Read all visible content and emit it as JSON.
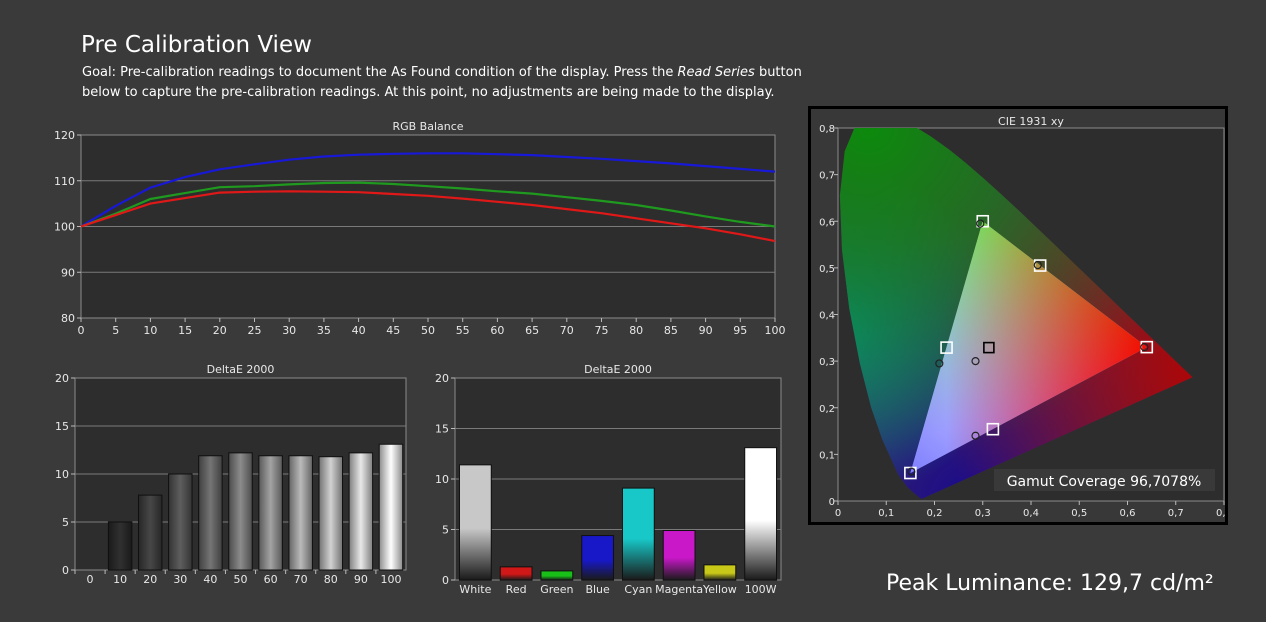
{
  "header": {
    "title": "Pre Calibration View",
    "goal_prefix": "Goal: Pre-calibration readings to document the As Found condition of the display. Press the ",
    "goal_button": "Read Series",
    "goal_suffix": " button below to capture the pre-calibration readings. At this point, no adjustments are being made to the display."
  },
  "peak_luminance": "Peak Luminance: 129,7 cd/m²",
  "chart_data": [
    {
      "type": "line",
      "title": "RGB Balance",
      "x": [
        0,
        5,
        10,
        15,
        20,
        25,
        30,
        35,
        40,
        45,
        50,
        55,
        60,
        65,
        70,
        75,
        80,
        85,
        90,
        95,
        100
      ],
      "xticks": [
        "0",
        "5",
        "10",
        "15",
        "20",
        "25",
        "30",
        "35",
        "40",
        "45",
        "50",
        "55",
        "60",
        "65",
        "70",
        "75",
        "80",
        "85",
        "90",
        "95",
        "100"
      ],
      "yticks": [
        "80",
        "90",
        "100",
        "110",
        "120"
      ],
      "xlim": [
        0,
        100
      ],
      "ylim": [
        80,
        120
      ],
      "grid": true,
      "series": [
        {
          "color": "#1818d8",
          "values": [
            100,
            104.5,
            108.5,
            110.8,
            112.5,
            113.6,
            114.6,
            115.3,
            115.7,
            115.9,
            116.0,
            116.0,
            115.8,
            115.6,
            115.2,
            114.8,
            114.3,
            113.8,
            113.2,
            112.6,
            112.0
          ]
        },
        {
          "color": "#1f9a1f",
          "values": [
            100,
            102.8,
            106.0,
            107.3,
            108.6,
            108.8,
            109.2,
            109.5,
            109.6,
            109.3,
            108.8,
            108.3,
            107.7,
            107.2,
            106.4,
            105.6,
            104.7,
            103.5,
            102.2,
            101.0,
            100.0
          ]
        },
        {
          "color": "#e01818",
          "values": [
            100,
            102.5,
            105.0,
            106.2,
            107.4,
            107.6,
            107.7,
            107.6,
            107.5,
            107.1,
            106.7,
            106.1,
            105.4,
            104.7,
            103.8,
            102.9,
            101.8,
            100.7,
            99.6,
            98.3,
            96.8
          ]
        }
      ]
    },
    {
      "type": "bar",
      "title": "DeltaE 2000",
      "categories": [
        "0",
        "10",
        "20",
        "30",
        "40",
        "50",
        "60",
        "70",
        "80",
        "90",
        "100"
      ],
      "values": [
        0,
        5.0,
        7.8,
        10.0,
        11.9,
        12.2,
        11.9,
        11.9,
        11.8,
        12.2,
        13.1
      ],
      "yticks": [
        "0",
        "5",
        "10",
        "15",
        "20"
      ],
      "ylim": [
        0,
        20
      ],
      "grid": true
    },
    {
      "type": "bar",
      "title": "DeltaE 2000",
      "categories": [
        "White",
        "Red",
        "Green",
        "Blue",
        "Cyan",
        "Magenta",
        "Yellow",
        "100W"
      ],
      "values": [
        11.4,
        1.3,
        0.9,
        4.4,
        9.1,
        4.9,
        1.5,
        13.1
      ],
      "colors": [
        "#c8c8c8",
        "#d01818",
        "#18c018",
        "#1818c8",
        "#18c8c8",
        "#c818c8",
        "#c8c818",
        "#ffffff"
      ],
      "yticks": [
        "0",
        "5",
        "10",
        "15",
        "20"
      ],
      "ylim": [
        0,
        20
      ],
      "grid": true
    },
    {
      "type": "scatter",
      "title": "CIE 1931 xy",
      "xticks": [
        "0",
        "0,1",
        "0,2",
        "0,3",
        "0,4",
        "0,5",
        "0,6",
        "0,7",
        "0,8"
      ],
      "yticks": [
        "0",
        "0,1",
        "0,2",
        "0,3",
        "0,4",
        "0,5",
        "0,6",
        "0,7",
        "0,8"
      ],
      "xlim": [
        0,
        0.8
      ],
      "ylim": [
        0,
        0.8
      ],
      "targets": [
        {
          "name": "red",
          "x": 0.64,
          "y": 0.33
        },
        {
          "name": "green",
          "x": 0.3,
          "y": 0.6
        },
        {
          "name": "blue",
          "x": 0.15,
          "y": 0.06
        },
        {
          "name": "yellow",
          "x": 0.419,
          "y": 0.505
        },
        {
          "name": "cyan",
          "x": 0.225,
          "y": 0.329
        },
        {
          "name": "magenta",
          "x": 0.321,
          "y": 0.154
        },
        {
          "name": "white",
          "x": 0.3127,
          "y": 0.329
        }
      ],
      "measured": [
        {
          "name": "red",
          "x": 0.635,
          "y": 0.33
        },
        {
          "name": "green",
          "x": 0.295,
          "y": 0.595
        },
        {
          "name": "blue",
          "x": 0.152,
          "y": 0.063
        },
        {
          "name": "yellow",
          "x": 0.414,
          "y": 0.506
        },
        {
          "name": "cyan",
          "x": 0.21,
          "y": 0.295
        },
        {
          "name": "magenta",
          "x": 0.285,
          "y": 0.14
        },
        {
          "name": "white",
          "x": 0.285,
          "y": 0.3
        }
      ],
      "annotation": "Gamut Coverage 96,7078%"
    }
  ]
}
